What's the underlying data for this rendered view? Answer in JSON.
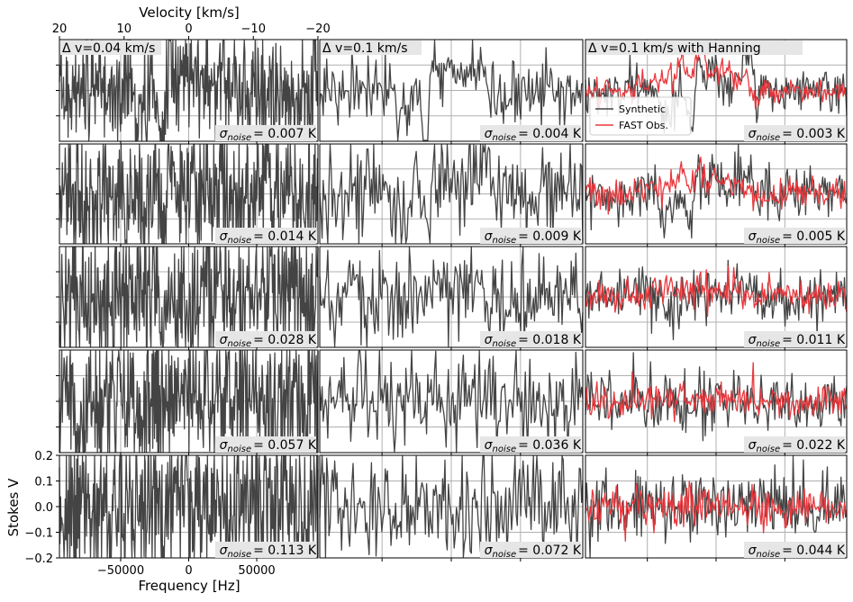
{
  "chart_data": {
    "type": "line",
    "layout": {
      "rows": 5,
      "cols": 3
    },
    "top_axis": {
      "label": "Velocity [km/s]",
      "ticks": [
        "20",
        "10",
        "0",
        "−10",
        "−20"
      ],
      "values": [
        20,
        10,
        0,
        -10,
        -20
      ]
    },
    "xlabel": "Frequency [Hz]",
    "ylabel": "Stokes V",
    "xlim": [
      -95000,
      95000
    ],
    "xticks": [
      {
        "label": "−50000",
        "value": -50000
      },
      {
        "label": "0",
        "value": 0
      },
      {
        "label": "50000",
        "value": 50000
      }
    ],
    "ylim": [
      -0.2,
      0.2
    ],
    "yticks": [
      {
        "label": "0.2",
        "value": 0.2
      },
      {
        "label": "0.1",
        "value": 0.1
      },
      {
        "label": "0.0",
        "value": 0.0
      },
      {
        "label": "−0.1",
        "value": -0.1
      },
      {
        "label": "−0.2",
        "value": -0.2
      }
    ],
    "grid": true,
    "column_titles": [
      "Δ v=0.04 km/s",
      "Δ v=0.1 km/s",
      "Δ v=0.1 km/s with Hanning"
    ],
    "legend": {
      "location": "upper-left of top-right panel",
      "entries": [
        {
          "name": "Synthetic",
          "color": "#444444"
        },
        {
          "name": "FAST Obs.",
          "color": "#e8383d"
        }
      ]
    },
    "series_colors": {
      "synthetic": "#444444",
      "observed": "#e8383d"
    },
    "noise_labels": [
      [
        "= 0.007 K",
        "= 0.004 K",
        "= 0.003 K"
      ],
      [
        "= 0.014 K",
        "= 0.009 K",
        "= 0.005 K"
      ],
      [
        "= 0.028 K",
        "= 0.018 K",
        "= 0.011 K"
      ],
      [
        "= 0.057 K",
        "= 0.036 K",
        "= 0.022 K"
      ],
      [
        "= 0.113 K",
        "= 0.072 K",
        "= 0.044 K"
      ]
    ],
    "noise_symbol": "σ",
    "noise_subscript": "noise",
    "noise_sigma_K": [
      [
        0.007,
        0.004,
        0.003
      ],
      [
        0.014,
        0.009,
        0.005
      ],
      [
        0.028,
        0.018,
        0.011
      ],
      [
        0.057,
        0.036,
        0.022
      ],
      [
        0.113,
        0.072,
        0.044
      ]
    ],
    "row_ylim_approx": [
      [
        -0.02,
        0.02
      ],
      [
        -0.03,
        0.03
      ],
      [
        -0.06,
        0.06
      ],
      [
        -0.12,
        0.12
      ],
      [
        -0.2,
        0.2
      ]
    ],
    "signal_features": [
      {
        "freq_hz": -38000,
        "amplitude_K": -0.012
      },
      {
        "freq_hz": -32000,
        "amplitude_K": -0.01
      },
      {
        "freq_hz": -21000,
        "amplitude_K": -0.004
      },
      {
        "freq_hz": -18000,
        "amplitude_K": -0.016
      },
      {
        "freq_hz": -13000,
        "amplitude_K": 0.015
      },
      {
        "freq_hz": -4000,
        "amplitude_K": 0.012
      },
      {
        "freq_hz": 2000,
        "amplitude_K": 0.006
      },
      {
        "freq_hz": 10000,
        "amplitude_K": 0.003
      },
      {
        "freq_hz": 17000,
        "amplitude_K": 0.01
      },
      {
        "freq_hz": 24000,
        "amplitude_K": 0.014
      }
    ],
    "observed_signal_features": [
      {
        "freq_hz": -55000,
        "amplitude_K": 0.004
      },
      {
        "freq_hz": -45000,
        "amplitude_K": 0.006
      },
      {
        "freq_hz": -35000,
        "amplitude_K": 0.005
      },
      {
        "freq_hz": -25000,
        "amplitude_K": 0.012
      },
      {
        "freq_hz": -15000,
        "amplitude_K": 0.008
      },
      {
        "freq_hz": -10000,
        "amplitude_K": 0.016
      },
      {
        "freq_hz": 0,
        "amplitude_K": 0.01
      },
      {
        "freq_hz": 8000,
        "amplitude_K": 0.008
      },
      {
        "freq_hz": 18000,
        "amplitude_K": 0.006
      },
      {
        "freq_hz": 30000,
        "amplitude_K": -0.003
      },
      {
        "freq_hz": 45000,
        "amplitude_K": -0.002
      }
    ]
  }
}
